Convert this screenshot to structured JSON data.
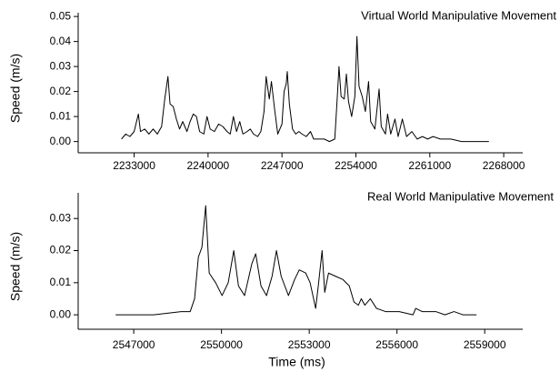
{
  "chart_data": [
    {
      "type": "line",
      "title": "Virtual World Manipulative Movement",
      "ylabel": "Speed (m/s)",
      "color": "#000000",
      "x": [
        2231800,
        2232200,
        2232600,
        2233000,
        2233400,
        2233600,
        2234000,
        2234400,
        2234800,
        2235200,
        2235600,
        2235900,
        2236200,
        2236400,
        2236700,
        2237000,
        2237300,
        2237600,
        2238000,
        2238300,
        2238600,
        2238900,
        2239200,
        2239600,
        2239900,
        2240200,
        2240600,
        2241000,
        2241400,
        2241800,
        2242100,
        2242400,
        2242700,
        2243000,
        2243300,
        2243700,
        2244000,
        2244300,
        2244700,
        2245000,
        2245300,
        2245500,
        2245800,
        2246000,
        2246300,
        2246600,
        2247000,
        2247200,
        2247400,
        2247500,
        2247700,
        2248000,
        2248300,
        2248600,
        2248900,
        2249300,
        2249700,
        2250000,
        2250500,
        2251000,
        2251500,
        2252000,
        2252200,
        2252400,
        2252600,
        2252900,
        2253100,
        2253300,
        2253600,
        2253900,
        2254100,
        2254300,
        2254600,
        2254900,
        2255200,
        2255400,
        2255800,
        2256200,
        2256400,
        2256800,
        2257000,
        2257300,
        2257700,
        2258000,
        2258400,
        2258800,
        2259300,
        2259800,
        2260300,
        2260800,
        2261300,
        2262000,
        2263000,
        2264000,
        2265000,
        2266600
      ],
      "values": [
        0.001,
        0.003,
        0.002,
        0.004,
        0.011,
        0.004,
        0.005,
        0.003,
        0.005,
        0.003,
        0.006,
        0.017,
        0.026,
        0.015,
        0.014,
        0.009,
        0.005,
        0.008,
        0.004,
        0.008,
        0.011,
        0.01,
        0.004,
        0.003,
        0.01,
        0.005,
        0.004,
        0.007,
        0.006,
        0.004,
        0.003,
        0.01,
        0.004,
        0.008,
        0.003,
        0.004,
        0.005,
        0.003,
        0.002,
        0.004,
        0.012,
        0.026,
        0.017,
        0.024,
        0.013,
        0.003,
        0.007,
        0.02,
        0.023,
        0.028,
        0.015,
        0.005,
        0.003,
        0.004,
        0.003,
        0.002,
        0.004,
        0.001,
        0.001,
        0.001,
        0.0,
        0.001,
        0.015,
        0.03,
        0.018,
        0.017,
        0.027,
        0.016,
        0.01,
        0.018,
        0.042,
        0.022,
        0.018,
        0.012,
        0.024,
        0.008,
        0.005,
        0.021,
        0.006,
        0.003,
        0.011,
        0.003,
        0.009,
        0.002,
        0.009,
        0.002,
        0.004,
        0.001,
        0.002,
        0.001,
        0.002,
        0.001,
        0.001,
        0.0,
        0.0,
        0.0
      ],
      "xlim": [
        2227700,
        2269800
      ],
      "xticks": [
        2233000,
        2240000,
        2247000,
        2254000,
        2261000,
        2268000
      ],
      "ylim": [
        -0.0045,
        0.0515
      ],
      "yticks": [
        {
          "value": 0,
          "label": "0.00"
        },
        {
          "value": 0.01,
          "label": "0.01"
        },
        {
          "value": 0.02,
          "label": "0.02"
        },
        {
          "value": 0.03,
          "label": "0.03"
        },
        {
          "value": 0.04,
          "label": "0.04"
        },
        {
          "value": 0.05,
          "label": "0.05"
        }
      ]
    },
    {
      "type": "line",
      "title": "Real World Manipulative Movement",
      "ylabel": "Speed (m/s)",
      "xlabel": "Time (ms)",
      "color": "#000000",
      "x": [
        2546380,
        2547680,
        2548620,
        2548930,
        2549080,
        2549210,
        2549330,
        2549460,
        2549580,
        2549800,
        2550020,
        2550230,
        2550420,
        2550580,
        2550790,
        2551040,
        2551170,
        2551350,
        2551540,
        2551730,
        2551880,
        2552040,
        2552290,
        2552500,
        2552660,
        2552880,
        2553030,
        2553220,
        2553310,
        2553440,
        2553530,
        2553660,
        2553900,
        2554150,
        2554370,
        2554530,
        2554680,
        2554780,
        2554900,
        2555090,
        2555300,
        2555610,
        2556080,
        2556550,
        2556640,
        2556860,
        2557330,
        2557640,
        2557950,
        2558260,
        2558720
      ],
      "values": [
        0.0,
        0.0,
        0.001,
        0.001,
        0.005,
        0.018,
        0.021,
        0.034,
        0.013,
        0.01,
        0.006,
        0.01,
        0.02,
        0.009,
        0.006,
        0.016,
        0.019,
        0.009,
        0.006,
        0.012,
        0.02,
        0.012,
        0.006,
        0.011,
        0.014,
        0.013,
        0.01,
        0.002,
        0.009,
        0.02,
        0.007,
        0.013,
        0.012,
        0.011,
        0.009,
        0.004,
        0.003,
        0.005,
        0.003,
        0.005,
        0.002,
        0.001,
        0.001,
        0.0,
        0.002,
        0.001,
        0.001,
        0.0,
        0.001,
        0.0,
        0.0
      ],
      "xlim": [
        2545100,
        2560300
      ],
      "xticks": [
        2547000,
        2550000,
        2553000,
        2556000,
        2559000
      ],
      "ylim": [
        -0.0045,
        0.038
      ],
      "yticks": [
        {
          "value": 0,
          "label": "0.00"
        },
        {
          "value": 0.01,
          "label": "0.01"
        },
        {
          "value": 0.02,
          "label": "0.02"
        },
        {
          "value": 0.03,
          "label": "0.03"
        }
      ]
    }
  ]
}
